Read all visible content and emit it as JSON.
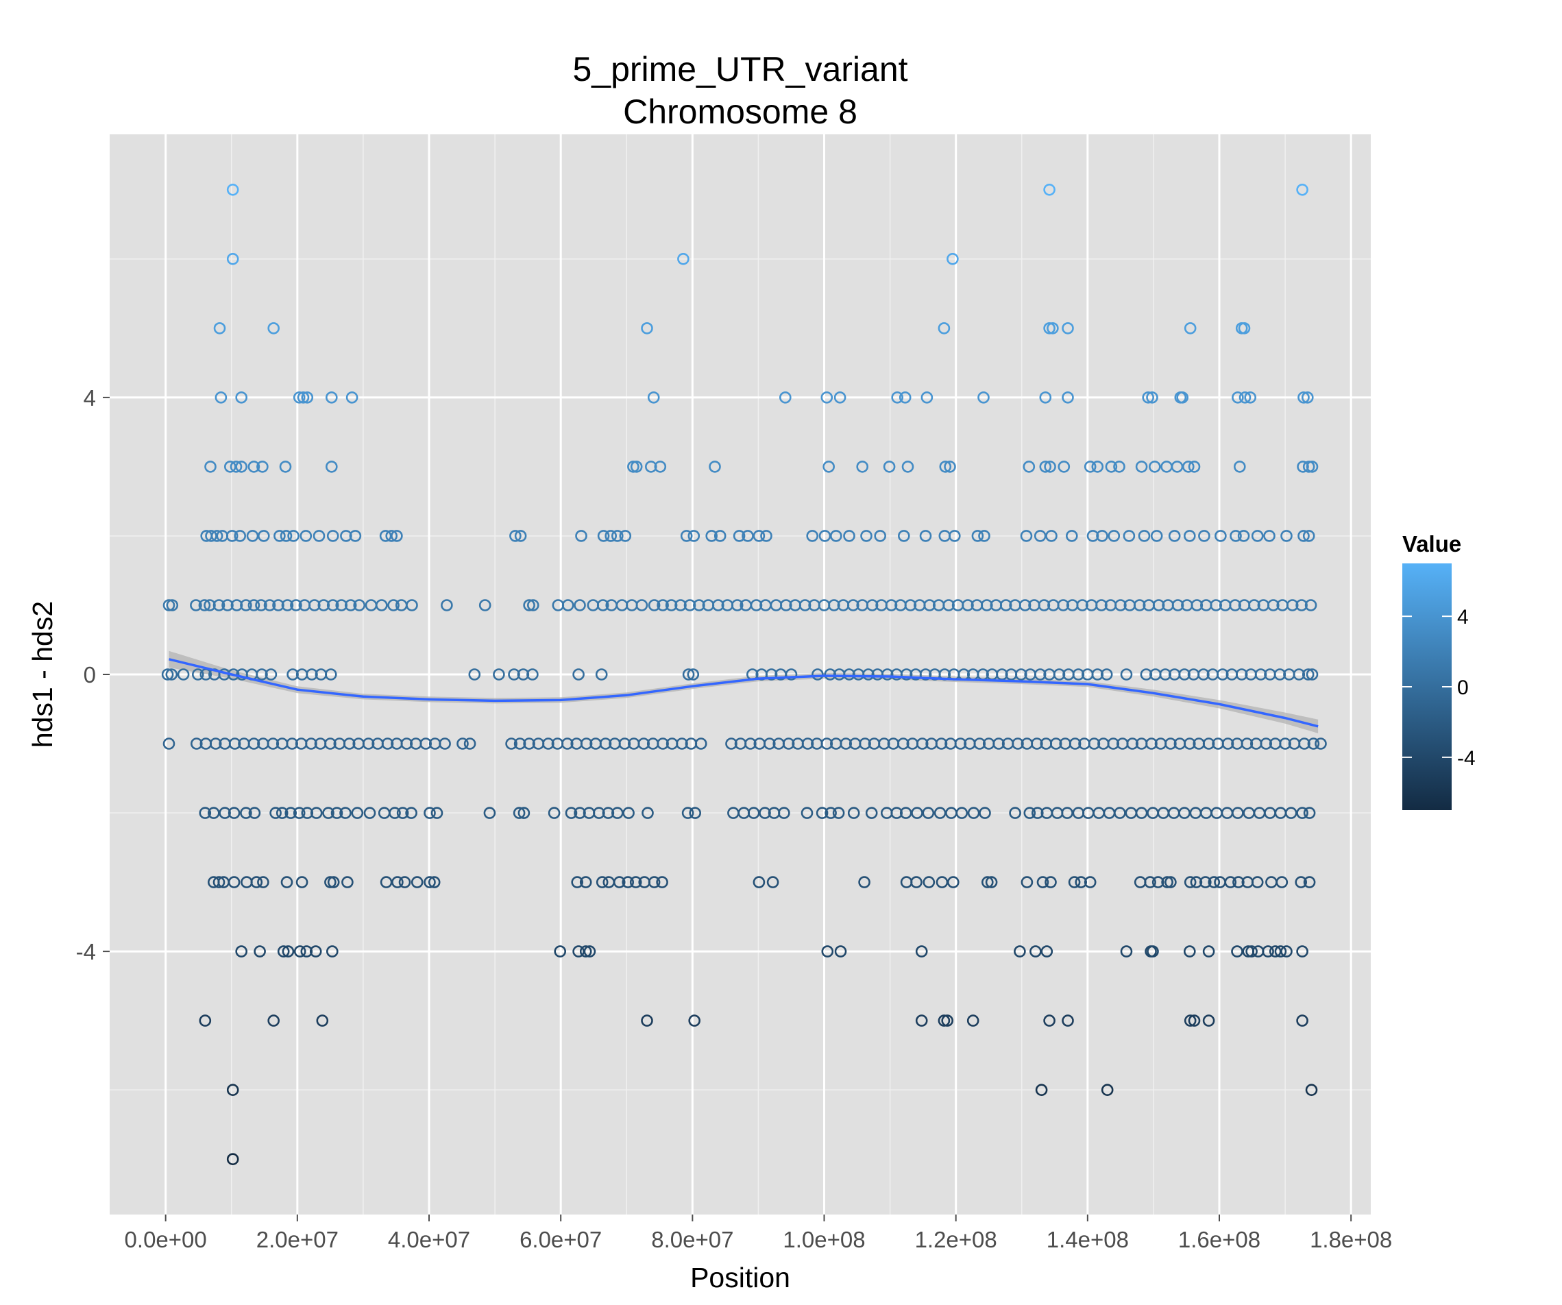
{
  "chart_data": {
    "type": "scatter",
    "title": "5_prime_UTR_variant",
    "subtitle": "Chromosome 8",
    "xlabel": "Position",
    "ylabel": "hds1 - hds2",
    "xlim": [
      -8500000,
      183000000
    ],
    "ylim": [
      -7.8,
      7.8
    ],
    "x_ticks": [
      0,
      20000000,
      40000000,
      60000000,
      80000000,
      100000000,
      120000000,
      140000000,
      160000000,
      180000000
    ],
    "x_tick_labels": [
      "0.0e+00",
      "2.0e+07",
      "4.0e+07",
      "6.0e+07",
      "8.0e+07",
      "1.0e+08",
      "1.2e+08",
      "1.4e+08",
      "1.6e+08",
      "1.8e+08"
    ],
    "y_ticks": [
      -4,
      0,
      4
    ],
    "y_tick_labels": [
      "-4",
      "0",
      "4"
    ],
    "grid": true,
    "background": "#e0e0e0",
    "legend": {
      "title": "Value",
      "placement": "right",
      "ticks": [
        4,
        0,
        -4
      ],
      "tick_labels": [
        "4",
        "0",
        "-4"
      ],
      "range": [
        -7,
        7
      ],
      "color_low": "#132b43",
      "color_high": "#56b1f7"
    },
    "smooth": {
      "color": "#3366ff",
      "band_color": "#b3b3b3",
      "x": [
        500000,
        10000000,
        20000000,
        30000000,
        40000000,
        50000000,
        60000000,
        70000000,
        80000000,
        90000000,
        100000000,
        110000000,
        120000000,
        130000000,
        140000000,
        150000000,
        160000000,
        170000000,
        175000000
      ],
      "y": [
        0.22,
        0.0,
        -0.22,
        -0.32,
        -0.36,
        -0.38,
        -0.37,
        -0.3,
        -0.17,
        -0.06,
        -0.02,
        -0.03,
        -0.07,
        -0.1,
        -0.14,
        -0.27,
        -0.43,
        -0.63,
        -0.75
      ],
      "band": [
        0.12,
        0.06,
        0.05,
        0.04,
        0.04,
        0.04,
        0.04,
        0.04,
        0.04,
        0.04,
        0.04,
        0.04,
        0.04,
        0.04,
        0.04,
        0.05,
        0.06,
        0.08,
        0.1
      ]
    },
    "points": [
      {
        "y": 7,
        "x": [
          10200000,
          134200000,
          172600000
        ]
      },
      {
        "y": 6,
        "x": [
          10200000,
          78600000,
          119500000
        ]
      },
      {
        "y": 5,
        "x": [
          8200000,
          16400000,
          73100000,
          118200000,
          134200000,
          134700000,
          137000000,
          155600000,
          163400000,
          163800000
        ]
      },
      {
        "y": 4,
        "x": [
          8400000,
          11500000,
          20300000,
          20900000,
          21500000,
          25200000,
          28300000,
          74100000,
          94100000,
          100400000,
          102400000,
          111100000,
          112300000,
          115600000,
          124200000,
          133600000,
          137000000,
          149200000,
          149800000,
          154100000,
          154400000,
          162800000,
          163900000,
          164700000,
          172800000,
          173400000
        ]
      },
      {
        "y": 3,
        "x": [
          6800000,
          9800000,
          10700000,
          11500000,
          13400000,
          14700000,
          18200000,
          25200000,
          71000000,
          71500000,
          73700000,
          75100000,
          83400000,
          100700000,
          105800000,
          109900000,
          112700000,
          118400000,
          119100000,
          131100000,
          133600000,
          134300000,
          136400000,
          140400000,
          141500000,
          143600000,
          144800000,
          148200000,
          150200000,
          152000000,
          153600000,
          155300000,
          156200000,
          163100000,
          172700000,
          173600000,
          174100000
        ]
      },
      {
        "y": 2,
        "x": [
          6200000,
          6900000,
          7800000,
          8600000,
          10100000,
          11300000,
          13200000,
          14900000,
          17300000,
          18300000,
          19400000,
          21300000,
          23300000,
          25400000,
          27400000,
          28800000,
          33400000,
          34300000,
          35100000,
          53100000,
          53900000,
          63100000,
          66500000,
          67600000,
          68600000,
          69800000,
          79100000,
          80200000,
          82900000,
          84200000,
          87100000,
          88400000,
          90100000,
          91200000,
          98200000,
          100100000,
          101800000,
          103800000,
          106400000,
          108500000,
          112100000,
          115400000,
          118300000,
          119800000,
          123300000,
          124300000,
          130700000,
          132800000,
          134500000,
          137600000,
          140800000,
          142200000,
          144000000,
          146300000,
          148600000,
          150500000,
          153200000,
          155500000,
          157700000,
          160200000,
          162500000,
          163700000,
          165800000,
          167600000,
          170200000,
          172800000,
          173600000
        ]
      },
      {
        "y": 1,
        "x": [
          500000,
          1000000,
          4600000,
          5900000,
          6700000,
          8100000,
          9400000,
          10800000,
          12200000,
          13400000,
          14500000,
          15800000,
          17100000,
          18500000,
          19800000,
          21100000,
          22600000,
          24000000,
          25400000,
          26700000,
          28100000,
          29400000,
          31200000,
          32800000,
          34600000,
          35800000,
          37400000,
          42700000,
          48500000,
          55200000,
          55800000,
          59600000,
          61100000,
          62900000,
          64900000,
          66400000,
          67700000,
          69300000,
          70800000,
          72300000,
          74200000,
          75500000,
          76800000,
          78200000,
          79600000,
          81000000,
          82400000,
          83900000,
          85300000,
          86800000,
          88100000,
          89700000,
          91100000,
          92700000,
          94200000,
          95600000,
          97100000,
          98500000,
          100000000,
          101500000,
          102900000,
          104400000,
          105800000,
          107300000,
          108700000,
          110200000,
          111600000,
          113100000,
          114500000,
          116000000,
          117400000,
          118900000,
          120300000,
          121800000,
          123200000,
          124700000,
          126100000,
          127600000,
          129000000,
          130500000,
          131900000,
          133400000,
          134800000,
          136300000,
          137700000,
          139200000,
          140600000,
          142100000,
          143500000,
          145000000,
          146400000,
          147900000,
          149300000,
          150800000,
          152200000,
          153700000,
          155100000,
          156600000,
          158000000,
          159500000,
          160900000,
          162400000,
          163800000,
          165300000,
          166700000,
          168200000,
          169600000,
          171100000,
          172500000,
          173900000
        ]
      },
      {
        "y": 0,
        "x": [
          300000,
          900000,
          2700000,
          4900000,
          6100000,
          7400000,
          8900000,
          10300000,
          11600000,
          13100000,
          14600000,
          16000000,
          19300000,
          20700000,
          22200000,
          23600000,
          25100000,
          46900000,
          50600000,
          52900000,
          54300000,
          55700000,
          62700000,
          66200000,
          79400000,
          80100000,
          89100000,
          90500000,
          92000000,
          93400000,
          95000000,
          99000000,
          100900000,
          102300000,
          103800000,
          105200000,
          106700000,
          108100000,
          109600000,
          111000000,
          112500000,
          113900000,
          115400000,
          116800000,
          118300000,
          119700000,
          121200000,
          122600000,
          124100000,
          125500000,
          127000000,
          128400000,
          129900000,
          131300000,
          132800000,
          134200000,
          135700000,
          137100000,
          138600000,
          140000000,
          141500000,
          142900000,
          145900000,
          148900000,
          150300000,
          151800000,
          153200000,
          154700000,
          156100000,
          157600000,
          159000000,
          160500000,
          161900000,
          163400000,
          164800000,
          166300000,
          167700000,
          169200000,
          170600000,
          172100000,
          173500000,
          174100000
        ]
      },
      {
        "y": -1,
        "x": [
          500000,
          4700000,
          6100000,
          7600000,
          9000000,
          10500000,
          11900000,
          13400000,
          14800000,
          16300000,
          17700000,
          19200000,
          20600000,
          22100000,
          23500000,
          25000000,
          26400000,
          27900000,
          29300000,
          30800000,
          32200000,
          33700000,
          35100000,
          36600000,
          38000000,
          39500000,
          40900000,
          42400000,
          45100000,
          46200000,
          52500000,
          53800000,
          55200000,
          56600000,
          58100000,
          59500000,
          61000000,
          62400000,
          63900000,
          65300000,
          66800000,
          68200000,
          69700000,
          71100000,
          72600000,
          74000000,
          75500000,
          76900000,
          78400000,
          79800000,
          81300000,
          85900000,
          87300000,
          88800000,
          90200000,
          91700000,
          93100000,
          94600000,
          96000000,
          97500000,
          98900000,
          100400000,
          101800000,
          103300000,
          104700000,
          106200000,
          107600000,
          109100000,
          110500000,
          112000000,
          113400000,
          114900000,
          116300000,
          117800000,
          119200000,
          120700000,
          122100000,
          123600000,
          125000000,
          126500000,
          127900000,
          129400000,
          130800000,
          132300000,
          133700000,
          135200000,
          136600000,
          138100000,
          139500000,
          141000000,
          142400000,
          143900000,
          145300000,
          146800000,
          148200000,
          149700000,
          151100000,
          152600000,
          154000000,
          155500000,
          156900000,
          158400000,
          159800000,
          161300000,
          162700000,
          164200000,
          165600000,
          167100000,
          168500000,
          170000000,
          171400000,
          172900000,
          174300000,
          175400000
        ]
      },
      {
        "y": -2,
        "x": [
          6000000,
          7300000,
          9000000,
          10400000,
          12200000,
          13500000,
          16700000,
          17700000,
          19000000,
          20300000,
          21500000,
          22900000,
          24700000,
          26000000,
          27300000,
          29100000,
          31000000,
          33200000,
          34800000,
          36000000,
          37300000,
          40100000,
          41200000,
          49200000,
          53700000,
          54400000,
          59000000,
          61600000,
          62900000,
          64300000,
          65800000,
          67200000,
          68600000,
          70300000,
          73200000,
          79300000,
          80400000,
          86200000,
          87800000,
          89300000,
          91000000,
          92400000,
          93900000,
          97400000,
          99700000,
          101000000,
          102200000,
          104500000,
          107200000,
          109500000,
          111000000,
          112400000,
          114100000,
          115800000,
          117600000,
          119300000,
          120900000,
          122700000,
          124400000,
          129000000,
          131200000,
          132400000,
          133800000,
          135400000,
          136900000,
          138600000,
          140100000,
          141700000,
          143300000,
          144900000,
          146600000,
          148200000,
          149900000,
          151500000,
          153100000,
          154700000,
          156400000,
          158000000,
          159600000,
          161200000,
          162800000,
          164500000,
          166100000,
          167700000,
          169300000,
          170900000,
          172600000,
          173700000
        ]
      },
      {
        "y": -3,
        "x": [
          7300000,
          8100000,
          8800000,
          10400000,
          12300000,
          13800000,
          14800000,
          18400000,
          20700000,
          25000000,
          25500000,
          27600000,
          33500000,
          35200000,
          36300000,
          38200000,
          40100000,
          40800000,
          62500000,
          63800000,
          66300000,
          67300000,
          68900000,
          70200000,
          71400000,
          72700000,
          74200000,
          75400000,
          90100000,
          92200000,
          106100000,
          112500000,
          114000000,
          115900000,
          117900000,
          119600000,
          124800000,
          125400000,
          130800000,
          133200000,
          134400000,
          138000000,
          139000000,
          140400000,
          148000000,
          149500000,
          150700000,
          152100000,
          152600000,
          155600000,
          156500000,
          157900000,
          159200000,
          160100000,
          161700000,
          162900000,
          164300000,
          165800000,
          167900000,
          169500000,
          172400000,
          173700000
        ]
      },
      {
        "y": -4,
        "x": [
          11500000,
          14300000,
          17900000,
          18600000,
          20400000,
          21400000,
          22800000,
          25300000,
          59900000,
          62700000,
          63800000,
          64400000,
          100500000,
          102500000,
          114800000,
          129700000,
          132100000,
          133800000,
          145900000,
          149600000,
          149900000,
          155500000,
          158400000,
          162700000,
          164400000,
          164900000,
          165900000,
          167400000,
          168500000,
          169300000,
          170200000,
          172600000
        ]
      },
      {
        "y": -5,
        "x": [
          6000000,
          16400000,
          23800000,
          73100000,
          80300000,
          114800000,
          118200000,
          118700000,
          122600000,
          134200000,
          137000000,
          155600000,
          156200000,
          158400000,
          172600000
        ]
      },
      {
        "y": -6,
        "x": [
          10200000,
          133000000,
          143000000,
          174000000
        ]
      },
      {
        "y": -7,
        "x": [
          10200000
        ]
      }
    ]
  }
}
